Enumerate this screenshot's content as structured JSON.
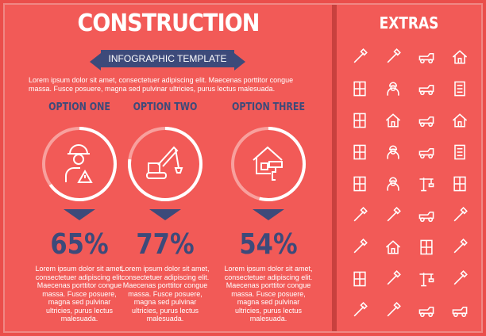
{
  "title": "CONSTRUCTION",
  "subtitle": "INFOGRAPHIC TEMPLATE",
  "intro": "Lorem ipsum dolor sit amet, consectetuer adipiscing elit. Maecenas porttitor congue massa. Fusce posuere, magna sed pulvinar ultricies, purus lectus malesuada.",
  "options": [
    {
      "title": "OPTION ONE",
      "percent_label": "65%",
      "percent": 65,
      "icon": "worker-warning-icon",
      "desc": "Lorem ipsum dolor sit amet, consectetuer adipiscing elit. Maecenas porttitor congue massa. Fusce posuere, magna sed pulvinar ultricies, purus lectus malesuada."
    },
    {
      "title": "OPTION TWO",
      "percent_label": "77%",
      "percent": 77,
      "icon": "crawler-crane-icon",
      "desc": "Lorem ipsum dolor sit amet, consectetuer adipiscing elit. Maecenas porttitor congue massa. Fusce posuere, magna sed pulvinar ultricies, purus lectus malesuada."
    },
    {
      "title": "OPTION THREE",
      "percent_label": "54%",
      "percent": 54,
      "icon": "house-paint-roller-icon",
      "desc": "Lorem ipsum dolor sit amet, consectetuer adipiscing elit. Maecenas porttitor congue massa. Fusce posuere, magna sed pulvinar ultricies, purus lectus malesuada."
    }
  ],
  "extras": {
    "title": "EXTRAS",
    "icons": [
      "pipe-icon",
      "compass-icon",
      "forklift-icon",
      "house-icon",
      "blueprint-icon",
      "worker-icon",
      "excavator-icon",
      "building-icon",
      "door-icon",
      "house-plan-icon",
      "truck-icon",
      "home-icon",
      "window-icon",
      "builder-icon",
      "excavator-icon",
      "office-building-icon",
      "cabinet-icon",
      "worker-sign-icon",
      "crane-icon",
      "door-panel-icon",
      "tools-icon",
      "drill-icon",
      "crane-truck-icon",
      "tools-icon",
      "measuring-tape-icon",
      "house-repair-icon",
      "barrier-icon",
      "wheelbarrow-icon",
      "blueprint-pencil-icon",
      "broom-icon",
      "tower-crane-icon",
      "hammer-icon",
      "paint-brush-icon",
      "ladder-icon",
      "car-icon",
      "concrete-mixer-icon"
    ]
  },
  "colors": {
    "background": "#f25a57",
    "accent": "#3d4a7a",
    "ring_track": "#f8a09d",
    "ring_fill": "#ffffff"
  }
}
